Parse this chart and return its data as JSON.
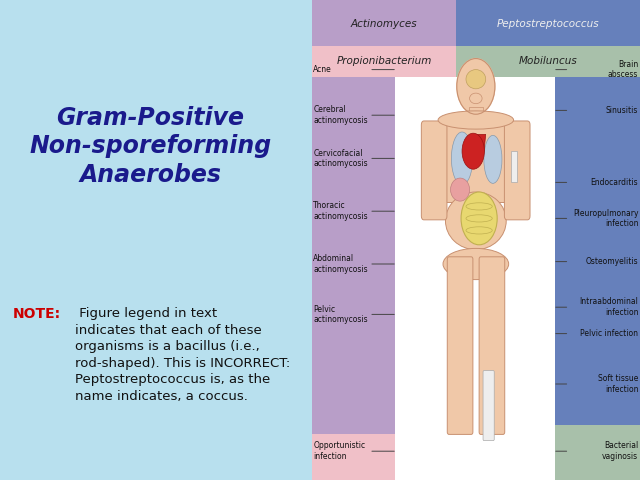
{
  "title_line1": "Gram-Positive",
  "title_line2": "Non-sporeforming",
  "title_line3": "Anaerobes",
  "title_color": "#1a1a8c",
  "note_bold": "NOTE:",
  "note_bold_color": "#cc0000",
  "note_rest": " Figure legend in text\nindicates that each of these\norganisms is a bacillus (i.e.,\nrod-shaped). This is INCORRECT:\nPeptostreptococcus is, as the\nname indicates, a coccus.",
  "note_text_color": "#111111",
  "bg_color": "#b8e0ee",
  "left_panel_color": "#b89ec8",
  "pink_panel_color": "#f0c0c8",
  "blue_panel_color": "#6680bb",
  "sage_panel_color": "#a8c0aa",
  "body_skin": "#f0c8a8",
  "body_outline": "#c89070",
  "lung_color": "#b8cce0",
  "heart_color": "#cc2222",
  "stomach_color": "#e8a0a0",
  "intestine_color": "#e8d870",
  "brain_color": "#e8c880",
  "bone_color": "#eeeeee",
  "left_labels": [
    [
      "Acne",
      0.855
    ],
    [
      "Cerebral\nactinomycosis",
      0.76
    ],
    [
      "Cervicofacial\nactinomycosis",
      0.67
    ],
    [
      "Thoracic\nactinomycosis",
      0.56
    ],
    [
      "Abdominal\nactinomycosis",
      0.45
    ],
    [
      "Pelvic\nactinomycosis",
      0.345
    ],
    [
      "Opportunistic\ninfection",
      0.06
    ]
  ],
  "right_labels": [
    [
      "Brain\nabscess",
      0.855
    ],
    [
      "Sinusitis",
      0.77
    ],
    [
      "Endocarditis",
      0.62
    ],
    [
      "Pleuropulmonary\ninfection",
      0.545
    ],
    [
      "Osteomyelitis",
      0.455
    ],
    [
      "Intraabdominal\ninfection",
      0.36
    ],
    [
      "Pelvic infection",
      0.305
    ],
    [
      "Soft tissue\ninfection",
      0.2
    ],
    [
      "Bacterial\nvaginosis",
      0.06
    ]
  ],
  "top_left_label": "Actinomyces",
  "top_right_label": "Peptostreptococcus",
  "second_left_label": "Propionibacterium",
  "second_right_label": "Mobiluncus"
}
